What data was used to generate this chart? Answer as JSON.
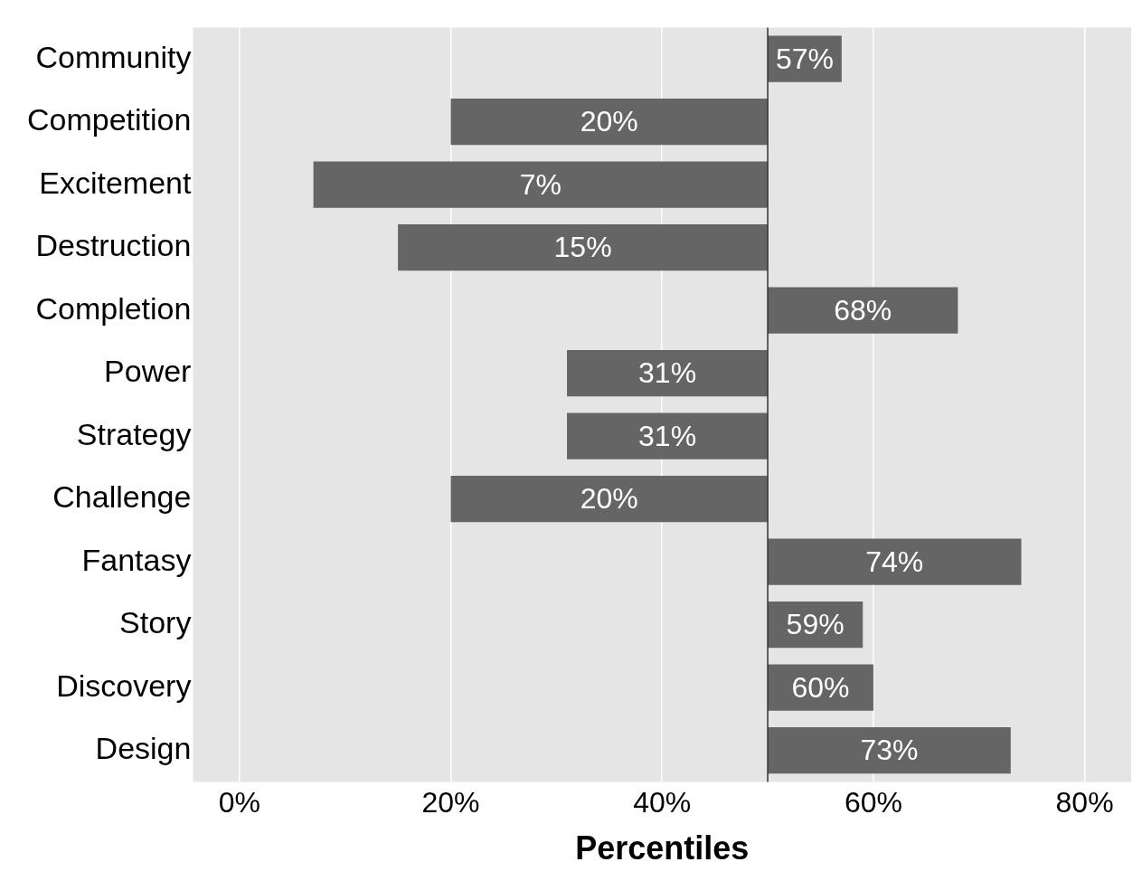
{
  "chart_data": {
    "type": "bar",
    "orientation": "horizontal",
    "xlabel": "Percentiles",
    "categories": [
      "Community",
      "Competition",
      "Excitement",
      "Destruction",
      "Completion",
      "Power",
      "Strategy",
      "Challenge",
      "Fantasy",
      "Story",
      "Discovery",
      "Design"
    ],
    "base": [
      50,
      50,
      50,
      50,
      50,
      50,
      50,
      50,
      50,
      50,
      50,
      50
    ],
    "values": [
      7,
      -30,
      -43,
      -35,
      18,
      -19,
      -19,
      -30,
      24,
      9,
      10,
      23
    ],
    "value_labels": [
      "57%",
      "20%",
      "7%",
      "15%",
      "68%",
      "31%",
      "31%",
      "20%",
      "74%",
      "59%",
      "60%",
      "73%"
    ],
    "color": "#656565",
    "xlim": [
      -4.4,
      84.4
    ],
    "xticks": [
      {
        "value": 0,
        "label": "0%"
      },
      {
        "value": 20,
        "label": "20%"
      },
      {
        "value": 40,
        "label": "40%"
      },
      {
        "value": 60,
        "label": "60%"
      },
      {
        "value": 80,
        "label": "80%"
      }
    ],
    "grid": "x",
    "ref_lines": [
      {
        "axis": "x",
        "value": 50,
        "color": "#333333"
      }
    ]
  }
}
